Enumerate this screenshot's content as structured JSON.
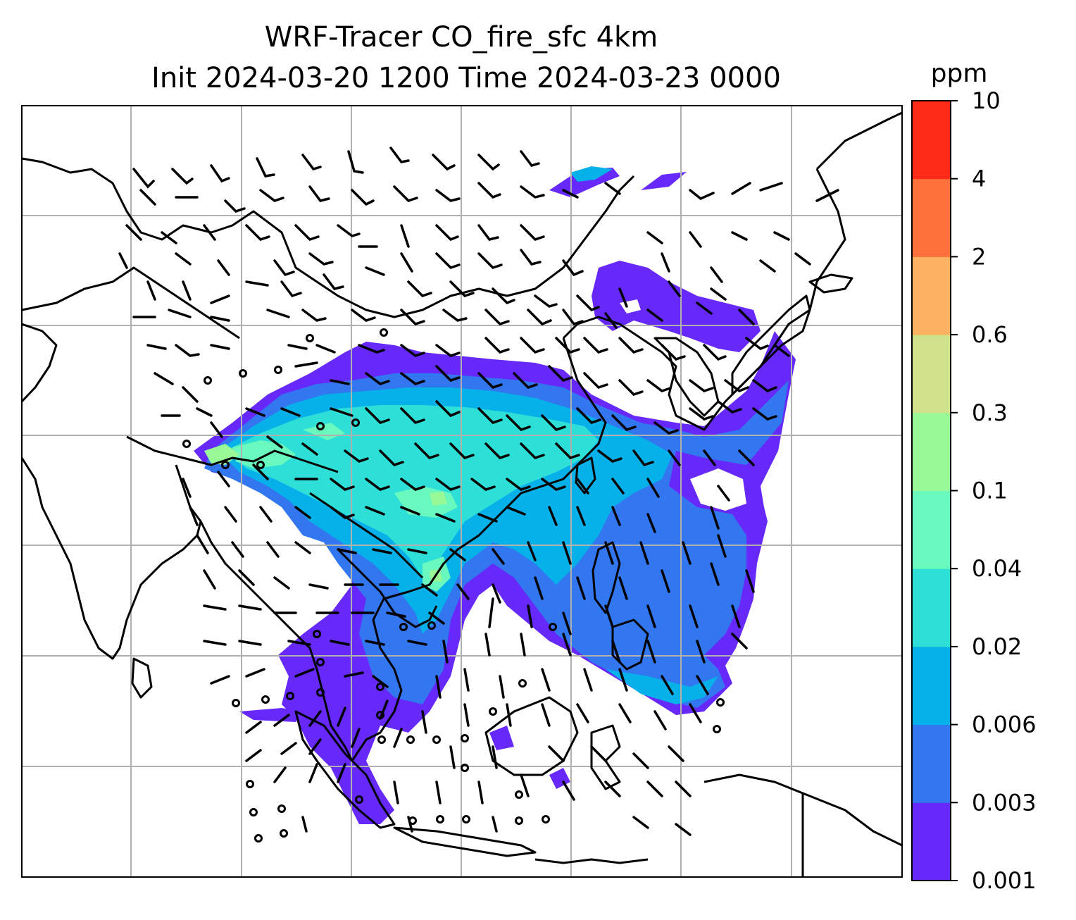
{
  "title": {
    "line1": "WRF-Tracer CO_fire_sfc 4km",
    "line2": "Init 2024-03-20 1200 Time 2024-03-23 0000"
  },
  "colorbar": {
    "unit": "ppm",
    "levels": [
      {
        "label": "0.001",
        "color": "#6629fa"
      },
      {
        "label": "0.003",
        "color": "#3277f0"
      },
      {
        "label": "0.006",
        "color": "#06b1ea"
      },
      {
        "label": "0.02",
        "color": "#2ddfd6"
      },
      {
        "label": "0.04",
        "color": "#69f8be"
      },
      {
        "label": "0.1",
        "color": "#99f996"
      },
      {
        "label": "0.3",
        "color": "#cfe18a"
      },
      {
        "label": "0.6",
        "color": "#fdb262"
      },
      {
        "label": "2",
        "color": "#ff713b"
      },
      {
        "label": "4",
        "color": "#ff2a17"
      },
      {
        "label": "10",
        "color": null
      }
    ]
  },
  "map": {
    "gridlines": true,
    "gridline_color": "#b0b0b0",
    "coastline_color": "#000000",
    "overlay": "wind barbs"
  }
}
